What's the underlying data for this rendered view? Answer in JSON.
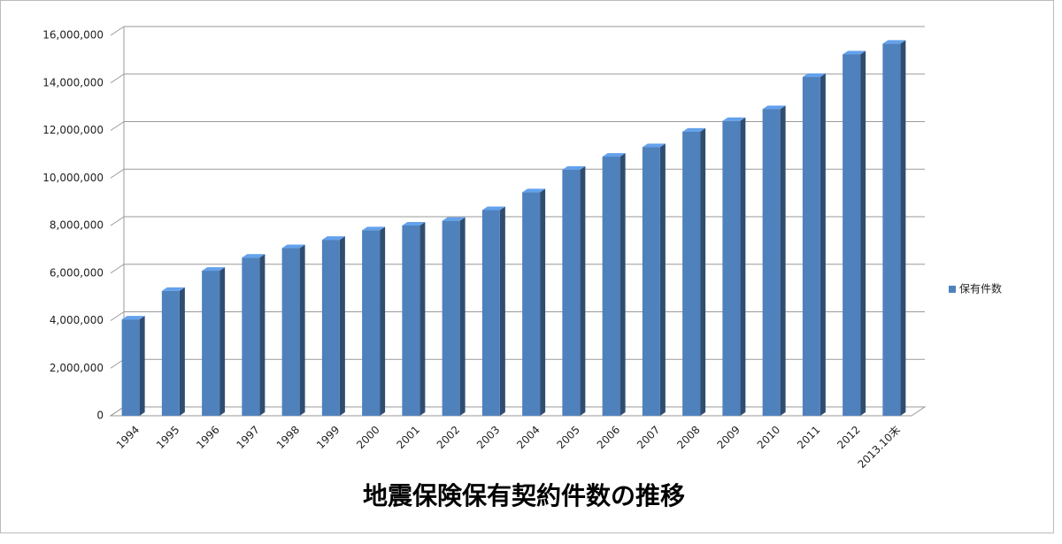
{
  "chart_data": {
    "type": "bar3d",
    "title": "地震保険保有契約件数の推移",
    "categories": [
      "1994",
      "1995",
      "1996",
      "1997",
      "1998",
      "1999",
      "2000",
      "2001",
      "2002",
      "2003",
      "2004",
      "2005",
      "2006",
      "2007",
      "2008",
      "2009",
      "2010",
      "2011",
      "2012",
      "2013.10末"
    ],
    "series": [
      {
        "name": "保有件数",
        "color": "#4f81bd",
        "values": [
          4050000,
          5250000,
          6100000,
          6650000,
          7050000,
          7400000,
          7800000,
          8000000,
          8200000,
          8650000,
          9400000,
          10350000,
          10900000,
          11300000,
          11950000,
          12400000,
          12900000,
          14250000,
          15200000,
          15650000
        ]
      }
    ],
    "ylim": [
      0,
      16000000
    ],
    "yticks": [
      0,
      {
        "value": 2000000,
        "label": "2,000,000"
      },
      {
        "value": 4000000,
        "label": "4,000,000"
      },
      {
        "value": 6000000,
        "label": "6,000,000"
      },
      {
        "value": 8000000,
        "label": "8,000,000"
      },
      {
        "value": 10000000,
        "label": "10,000,000"
      },
      {
        "value": 12000000,
        "label": "12,000,000"
      },
      {
        "value": 14000000,
        "label": "14,000,000"
      },
      {
        "value": 16000000,
        "label": "16,000,000"
      }
    ],
    "grid": true,
    "legend": "right"
  }
}
